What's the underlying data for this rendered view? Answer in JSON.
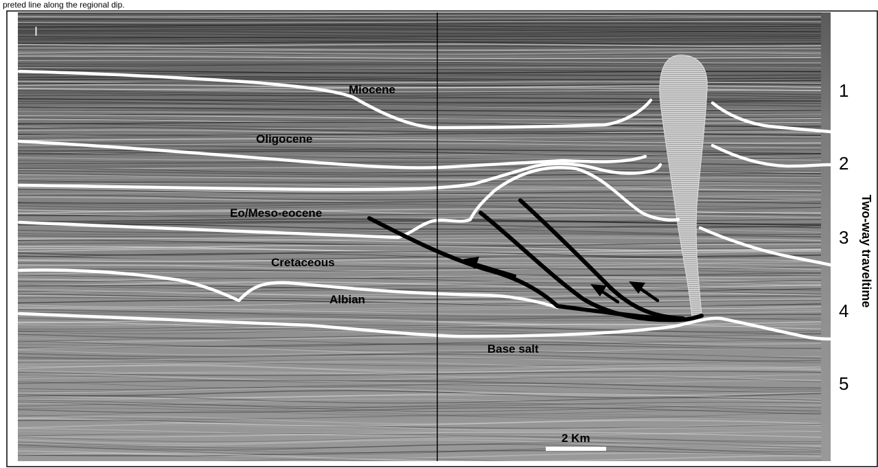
{
  "caption": {
    "text": "preted line along the regional dip."
  },
  "panel": {
    "letter": "I"
  },
  "units": [
    {
      "key": "miocene",
      "label": "Miocene"
    },
    {
      "key": "oligocene",
      "label": "Oligocene"
    },
    {
      "key": "eo_meso_eocene",
      "label": "Eo/Meso-eocene"
    },
    {
      "key": "cretaceous",
      "label": "Cretaceous"
    },
    {
      "key": "albian",
      "label": "Albian"
    },
    {
      "key": "base_salt",
      "label": "Base salt"
    }
  ],
  "time_axis": {
    "title": "Two-way traveltime",
    "ticks": [
      "1",
      "2",
      "3",
      "4",
      "5"
    ]
  },
  "scale_bar": {
    "label": "2 Km"
  },
  "colors": {
    "horizon": "#ffffff",
    "fault": "#000000",
    "salt": "#c8c8c8",
    "background": "#8a8a8a"
  }
}
